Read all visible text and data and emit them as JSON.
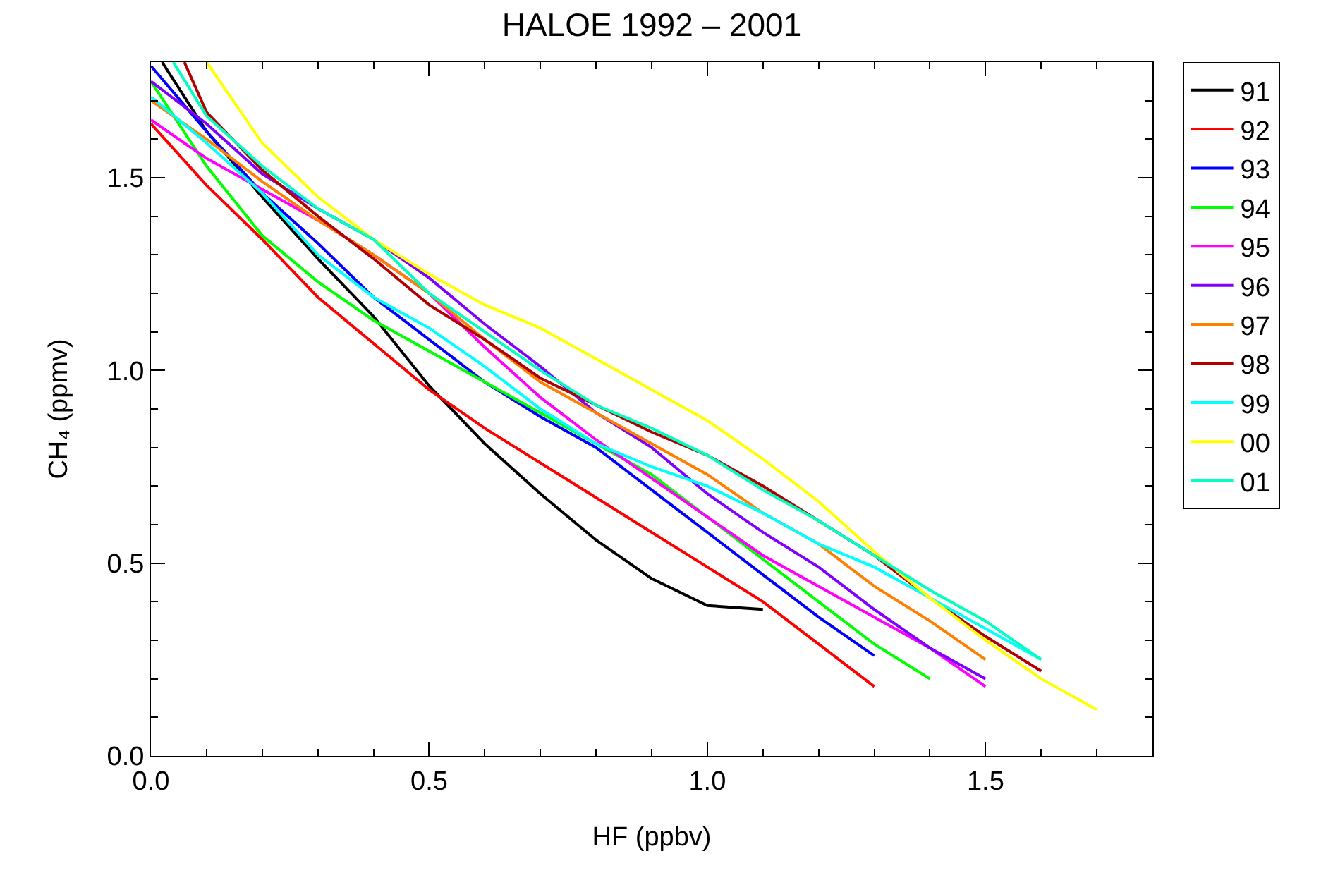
{
  "chart_data": {
    "type": "line",
    "title": "HALOE 1992 – 2001",
    "xlabel": "HF (ppbv)",
    "ylabel": "CH₄ (ppmv)",
    "xlim": [
      0,
      1.8
    ],
    "ylim": [
      0,
      1.8
    ],
    "xticks": [
      {
        "value": 0,
        "label": "0.0"
      },
      {
        "value": 0.1,
        "label": null
      },
      {
        "value": 0.2,
        "label": null
      },
      {
        "value": 0.3,
        "label": null
      },
      {
        "value": 0.4,
        "label": null
      },
      0.5,
      {
        "value": 0.6,
        "label": null
      },
      {
        "value": 0.7,
        "label": null
      },
      {
        "value": 0.8,
        "label": null
      },
      {
        "value": 0.9,
        "label": null
      },
      {
        "value": 1,
        "label": "1.0"
      },
      {
        "value": 1.1,
        "label": null
      },
      {
        "value": 1.2,
        "label": null
      },
      {
        "value": 1.3,
        "label": null
      },
      {
        "value": 1.4,
        "label": null
      },
      1.5,
      {
        "value": 1.6,
        "label": null
      },
      {
        "value": 1.7,
        "label": null
      }
    ],
    "yticks": [
      {
        "value": 0,
        "label": "0.0"
      },
      {
        "value": 0.1,
        "label": null
      },
      {
        "value": 0.2,
        "label": null
      },
      {
        "value": 0.3,
        "label": null
      },
      {
        "value": 0.4,
        "label": null
      },
      0.5,
      {
        "value": 0.6,
        "label": null
      },
      {
        "value": 0.7,
        "label": null
      },
      {
        "value": 0.8,
        "label": null
      },
      {
        "value": 0.9,
        "label": null
      },
      {
        "value": 1,
        "label": "1.0"
      },
      {
        "value": 1.1,
        "label": null
      },
      {
        "value": 1.2,
        "label": null
      },
      {
        "value": 1.3,
        "label": null
      },
      {
        "value": 1.4,
        "label": null
      },
      1.5,
      {
        "value": 1.6,
        "label": null
      },
      {
        "value": 1.7,
        "label": null
      }
    ],
    "grid": false,
    "legend": "top right",
    "marker": "none",
    "line_style": "solid",
    "series": [
      {
        "name": "91",
        "color": "#000000",
        "x": [
          0.02,
          0.1,
          0.2,
          0.3,
          0.4,
          0.5,
          0.6,
          0.7,
          0.8,
          0.9,
          1.0,
          1.1
        ],
        "values": [
          1.8,
          1.62,
          1.45,
          1.29,
          1.14,
          0.96,
          0.81,
          0.68,
          0.56,
          0.46,
          0.39,
          0.38
        ]
      },
      {
        "name": "92",
        "color": "#ff0000",
        "x": [
          0,
          0.1,
          0.2,
          0.3,
          0.4,
          0.5,
          0.6,
          0.7,
          0.8,
          0.9,
          1.0,
          1.1,
          1.2,
          1.3
        ],
        "values": [
          1.64,
          1.48,
          1.34,
          1.19,
          1.07,
          0.95,
          0.85,
          0.76,
          0.67,
          0.58,
          0.49,
          0.4,
          0.29,
          0.18
        ]
      },
      {
        "name": "93",
        "color": "#0000ff",
        "x": [
          0,
          0.1,
          0.2,
          0.3,
          0.4,
          0.5,
          0.6,
          0.7,
          0.8,
          0.9,
          1.0,
          1.1,
          1.2,
          1.3
        ],
        "values": [
          1.79,
          1.62,
          1.46,
          1.33,
          1.19,
          1.08,
          0.97,
          0.88,
          0.8,
          0.69,
          0.58,
          0.47,
          0.36,
          0.26
        ]
      },
      {
        "name": "94",
        "color": "#00ff00",
        "x": [
          0,
          0.1,
          0.2,
          0.3,
          0.4,
          0.5,
          0.6,
          0.7,
          0.8,
          0.9,
          1.0,
          1.1,
          1.2,
          1.3,
          1.4
        ],
        "values": [
          1.75,
          1.53,
          1.35,
          1.23,
          1.13,
          1.05,
          0.97,
          0.89,
          0.81,
          0.73,
          0.62,
          0.51,
          0.4,
          0.29,
          0.2
        ]
      },
      {
        "name": "95",
        "color": "#ff00ff",
        "x": [
          0,
          0.1,
          0.2,
          0.3,
          0.4,
          0.5,
          0.6,
          0.7,
          0.8,
          0.9,
          1.0,
          1.1,
          1.2,
          1.3,
          1.4,
          1.5
        ],
        "values": [
          1.65,
          1.55,
          1.47,
          1.39,
          1.3,
          1.2,
          1.06,
          0.93,
          0.82,
          0.72,
          0.62,
          0.52,
          0.44,
          0.36,
          0.28,
          0.18
        ]
      },
      {
        "name": "96",
        "color": "#8000ff",
        "x": [
          0,
          0.1,
          0.2,
          0.3,
          0.4,
          0.5,
          0.6,
          0.7,
          0.8,
          0.9,
          1.0,
          1.1,
          1.2,
          1.3,
          1.4,
          1.5
        ],
        "values": [
          1.75,
          1.64,
          1.51,
          1.42,
          1.34,
          1.24,
          1.12,
          1.01,
          0.89,
          0.8,
          0.68,
          0.58,
          0.49,
          0.38,
          0.28,
          0.2
        ]
      },
      {
        "name": "97",
        "color": "#ff8000",
        "x": [
          0,
          0.1,
          0.2,
          0.3,
          0.4,
          0.5,
          0.6,
          0.7,
          0.8,
          0.9,
          1.0,
          1.1,
          1.2,
          1.3,
          1.4,
          1.5
        ],
        "values": [
          1.7,
          1.6,
          1.49,
          1.39,
          1.3,
          1.2,
          1.08,
          0.97,
          0.89,
          0.81,
          0.73,
          0.63,
          0.55,
          0.44,
          0.35,
          0.25
        ]
      },
      {
        "name": "98",
        "color": "#b00000",
        "x": [
          0.06,
          0.1,
          0.2,
          0.3,
          0.4,
          0.5,
          0.6,
          0.7,
          0.8,
          0.9,
          1.0,
          1.1,
          1.2,
          1.3,
          1.4,
          1.5,
          1.6
        ],
        "values": [
          1.8,
          1.67,
          1.52,
          1.4,
          1.29,
          1.17,
          1.08,
          0.98,
          0.91,
          0.84,
          0.78,
          0.7,
          0.61,
          0.52,
          0.41,
          0.31,
          0.22
        ]
      },
      {
        "name": "99",
        "color": "#00ffff",
        "x": [
          0,
          0.1,
          0.2,
          0.3,
          0.4,
          0.5,
          0.6,
          0.7,
          0.8,
          0.9,
          1.0,
          1.1,
          1.2,
          1.3,
          1.4,
          1.5,
          1.6
        ],
        "values": [
          1.71,
          1.59,
          1.46,
          1.3,
          1.19,
          1.11,
          1.01,
          0.9,
          0.81,
          0.75,
          0.7,
          0.63,
          0.55,
          0.49,
          0.41,
          0.33,
          0.25
        ]
      },
      {
        "name": "00",
        "color": "#ffff00",
        "x": [
          0.1,
          0.2,
          0.3,
          0.4,
          0.5,
          0.6,
          0.7,
          0.8,
          0.9,
          1.0,
          1.1,
          1.2,
          1.3,
          1.4,
          1.5,
          1.6,
          1.7
        ],
        "values": [
          1.8,
          1.59,
          1.45,
          1.34,
          1.25,
          1.17,
          1.11,
          1.03,
          0.95,
          0.87,
          0.77,
          0.66,
          0.53,
          0.41,
          0.3,
          0.2,
          0.12
        ]
      },
      {
        "name": "01",
        "color": "#00ffc0",
        "x": [
          0.04,
          0.1,
          0.2,
          0.3,
          0.4,
          0.5,
          0.6,
          0.7,
          0.8,
          0.9,
          1.0,
          1.1,
          1.2,
          1.3,
          1.4,
          1.5,
          1.6
        ],
        "values": [
          1.8,
          1.66,
          1.53,
          1.42,
          1.34,
          1.2,
          1.1,
          1.0,
          0.91,
          0.85,
          0.78,
          0.69,
          0.61,
          0.52,
          0.43,
          0.35,
          0.25
        ]
      }
    ]
  }
}
